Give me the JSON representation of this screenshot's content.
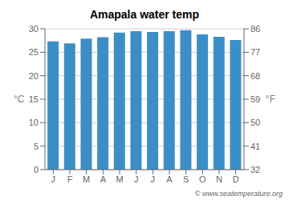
{
  "chart_data": {
    "type": "bar",
    "title": "Amapala water temp",
    "categories": [
      "J",
      "F",
      "M",
      "A",
      "M",
      "J",
      "J",
      "A",
      "S",
      "O",
      "N",
      "D"
    ],
    "values": [
      27.3,
      26.9,
      27.9,
      28.2,
      29.2,
      29.5,
      29.3,
      29.5,
      29.7,
      28.8,
      28.3,
      27.6
    ],
    "color": "#3b8fc6",
    "ylim": [
      0,
      30
    ],
    "yticks": [
      0,
      5,
      10,
      15,
      20,
      25,
      30
    ],
    "y2lim": [
      32,
      86
    ],
    "y2ticks": [
      32,
      41,
      50,
      59,
      68,
      77,
      86
    ],
    "ylabel": "°C",
    "y2label": "°F",
    "annotations": [
      "© www.seatemperature.org"
    ],
    "grid": true
  }
}
